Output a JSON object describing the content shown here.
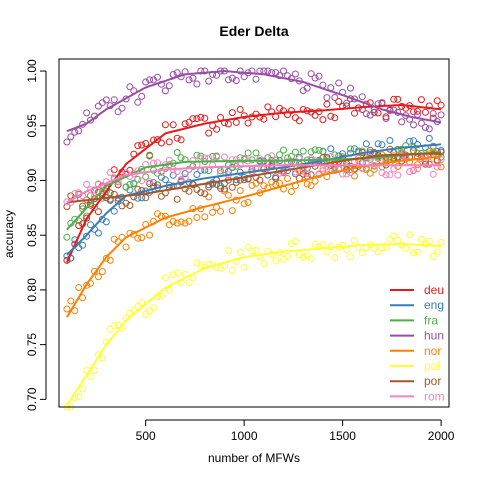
{
  "chart_data": {
    "type": "scatter",
    "title": "Eder Delta",
    "xlabel": "number of MFWs",
    "ylabel": "accuracy",
    "xlim": [
      60,
      2040
    ],
    "ylim": [
      0.693,
      1.011
    ],
    "xticks": [
      500,
      1000,
      1500,
      2000
    ],
    "yticks": [
      0.7,
      0.75,
      0.8,
      0.85,
      0.9,
      0.95,
      1.0
    ],
    "grid": false,
    "legend_position": "bottom-right",
    "x_range": [
      100,
      2000
    ],
    "x_step": 20,
    "series": [
      {
        "name": "deu",
        "color": "#e41a1c",
        "trend": [
          [
            100,
            0.825
          ],
          [
            200,
            0.865
          ],
          [
            400,
            0.915
          ],
          [
            600,
            0.943
          ],
          [
            800,
            0.952
          ],
          [
            1000,
            0.958
          ],
          [
            1200,
            0.962
          ],
          [
            1400,
            0.964
          ],
          [
            1600,
            0.967
          ],
          [
            1800,
            0.969
          ],
          [
            2000,
            0.965
          ]
        ]
      },
      {
        "name": "eng",
        "color": "#377eb8",
        "trend": [
          [
            100,
            0.832
          ],
          [
            200,
            0.85
          ],
          [
            300,
            0.87
          ],
          [
            400,
            0.886
          ],
          [
            600,
            0.895
          ],
          [
            800,
            0.902
          ],
          [
            1000,
            0.907
          ],
          [
            1200,
            0.912
          ],
          [
            1400,
            0.918
          ],
          [
            1600,
            0.925
          ],
          [
            1800,
            0.93
          ],
          [
            2000,
            0.933
          ]
        ]
      },
      {
        "name": "fra",
        "color": "#4daf4a",
        "trend": [
          [
            100,
            0.855
          ],
          [
            200,
            0.875
          ],
          [
            300,
            0.895
          ],
          [
            500,
            0.912
          ],
          [
            700,
            0.917
          ],
          [
            1000,
            0.918
          ],
          [
            1200,
            0.918
          ],
          [
            1400,
            0.919
          ],
          [
            1600,
            0.92
          ],
          [
            1800,
            0.923
          ],
          [
            2000,
            0.926
          ]
        ]
      },
      {
        "name": "hun",
        "color": "#984ea3",
        "trend": [
          [
            100,
            0.945
          ],
          [
            200,
            0.952
          ],
          [
            300,
            0.965
          ],
          [
            500,
            0.985
          ],
          [
            700,
            0.997
          ],
          [
            900,
            1.0
          ],
          [
            1100,
            0.997
          ],
          [
            1300,
            0.99
          ],
          [
            1500,
            0.978
          ],
          [
            1700,
            0.965
          ],
          [
            1850,
            0.958
          ],
          [
            2000,
            0.953
          ]
        ]
      },
      {
        "name": "nor",
        "color": "#ff7f00",
        "trend": [
          [
            100,
            0.775
          ],
          [
            200,
            0.805
          ],
          [
            300,
            0.83
          ],
          [
            400,
            0.848
          ],
          [
            600,
            0.866
          ],
          [
            800,
            0.876
          ],
          [
            1000,
            0.885
          ],
          [
            1200,
            0.895
          ],
          [
            1400,
            0.905
          ],
          [
            1600,
            0.913
          ],
          [
            1800,
            0.918
          ],
          [
            2000,
            0.922
          ]
        ]
      },
      {
        "name": "pol",
        "color": "#ffff33",
        "trend": [
          [
            100,
            0.695
          ],
          [
            200,
            0.722
          ],
          [
            300,
            0.75
          ],
          [
            400,
            0.772
          ],
          [
            600,
            0.802
          ],
          [
            800,
            0.82
          ],
          [
            1000,
            0.83
          ],
          [
            1200,
            0.835
          ],
          [
            1400,
            0.838
          ],
          [
            1600,
            0.841
          ],
          [
            1800,
            0.842
          ],
          [
            2000,
            0.84
          ]
        ]
      },
      {
        "name": "por",
        "color": "#a65628",
        "trend": [
          [
            100,
            0.88
          ],
          [
            300,
            0.884
          ],
          [
            500,
            0.888
          ],
          [
            700,
            0.894
          ],
          [
            900,
            0.9
          ],
          [
            1100,
            0.906
          ],
          [
            1300,
            0.912
          ],
          [
            1500,
            0.918
          ],
          [
            1700,
            0.923
          ],
          [
            2000,
            0.925
          ]
        ]
      },
      {
        "name": "rom",
        "color": "#f781bf",
        "trend": [
          [
            100,
            0.88
          ],
          [
            200,
            0.89
          ],
          [
            400,
            0.905
          ],
          [
            600,
            0.91
          ],
          [
            800,
            0.912
          ],
          [
            1000,
            0.913
          ],
          [
            1200,
            0.914
          ],
          [
            1400,
            0.914
          ],
          [
            1600,
            0.914
          ],
          [
            1800,
            0.914
          ],
          [
            2000,
            0.914
          ]
        ]
      }
    ]
  }
}
